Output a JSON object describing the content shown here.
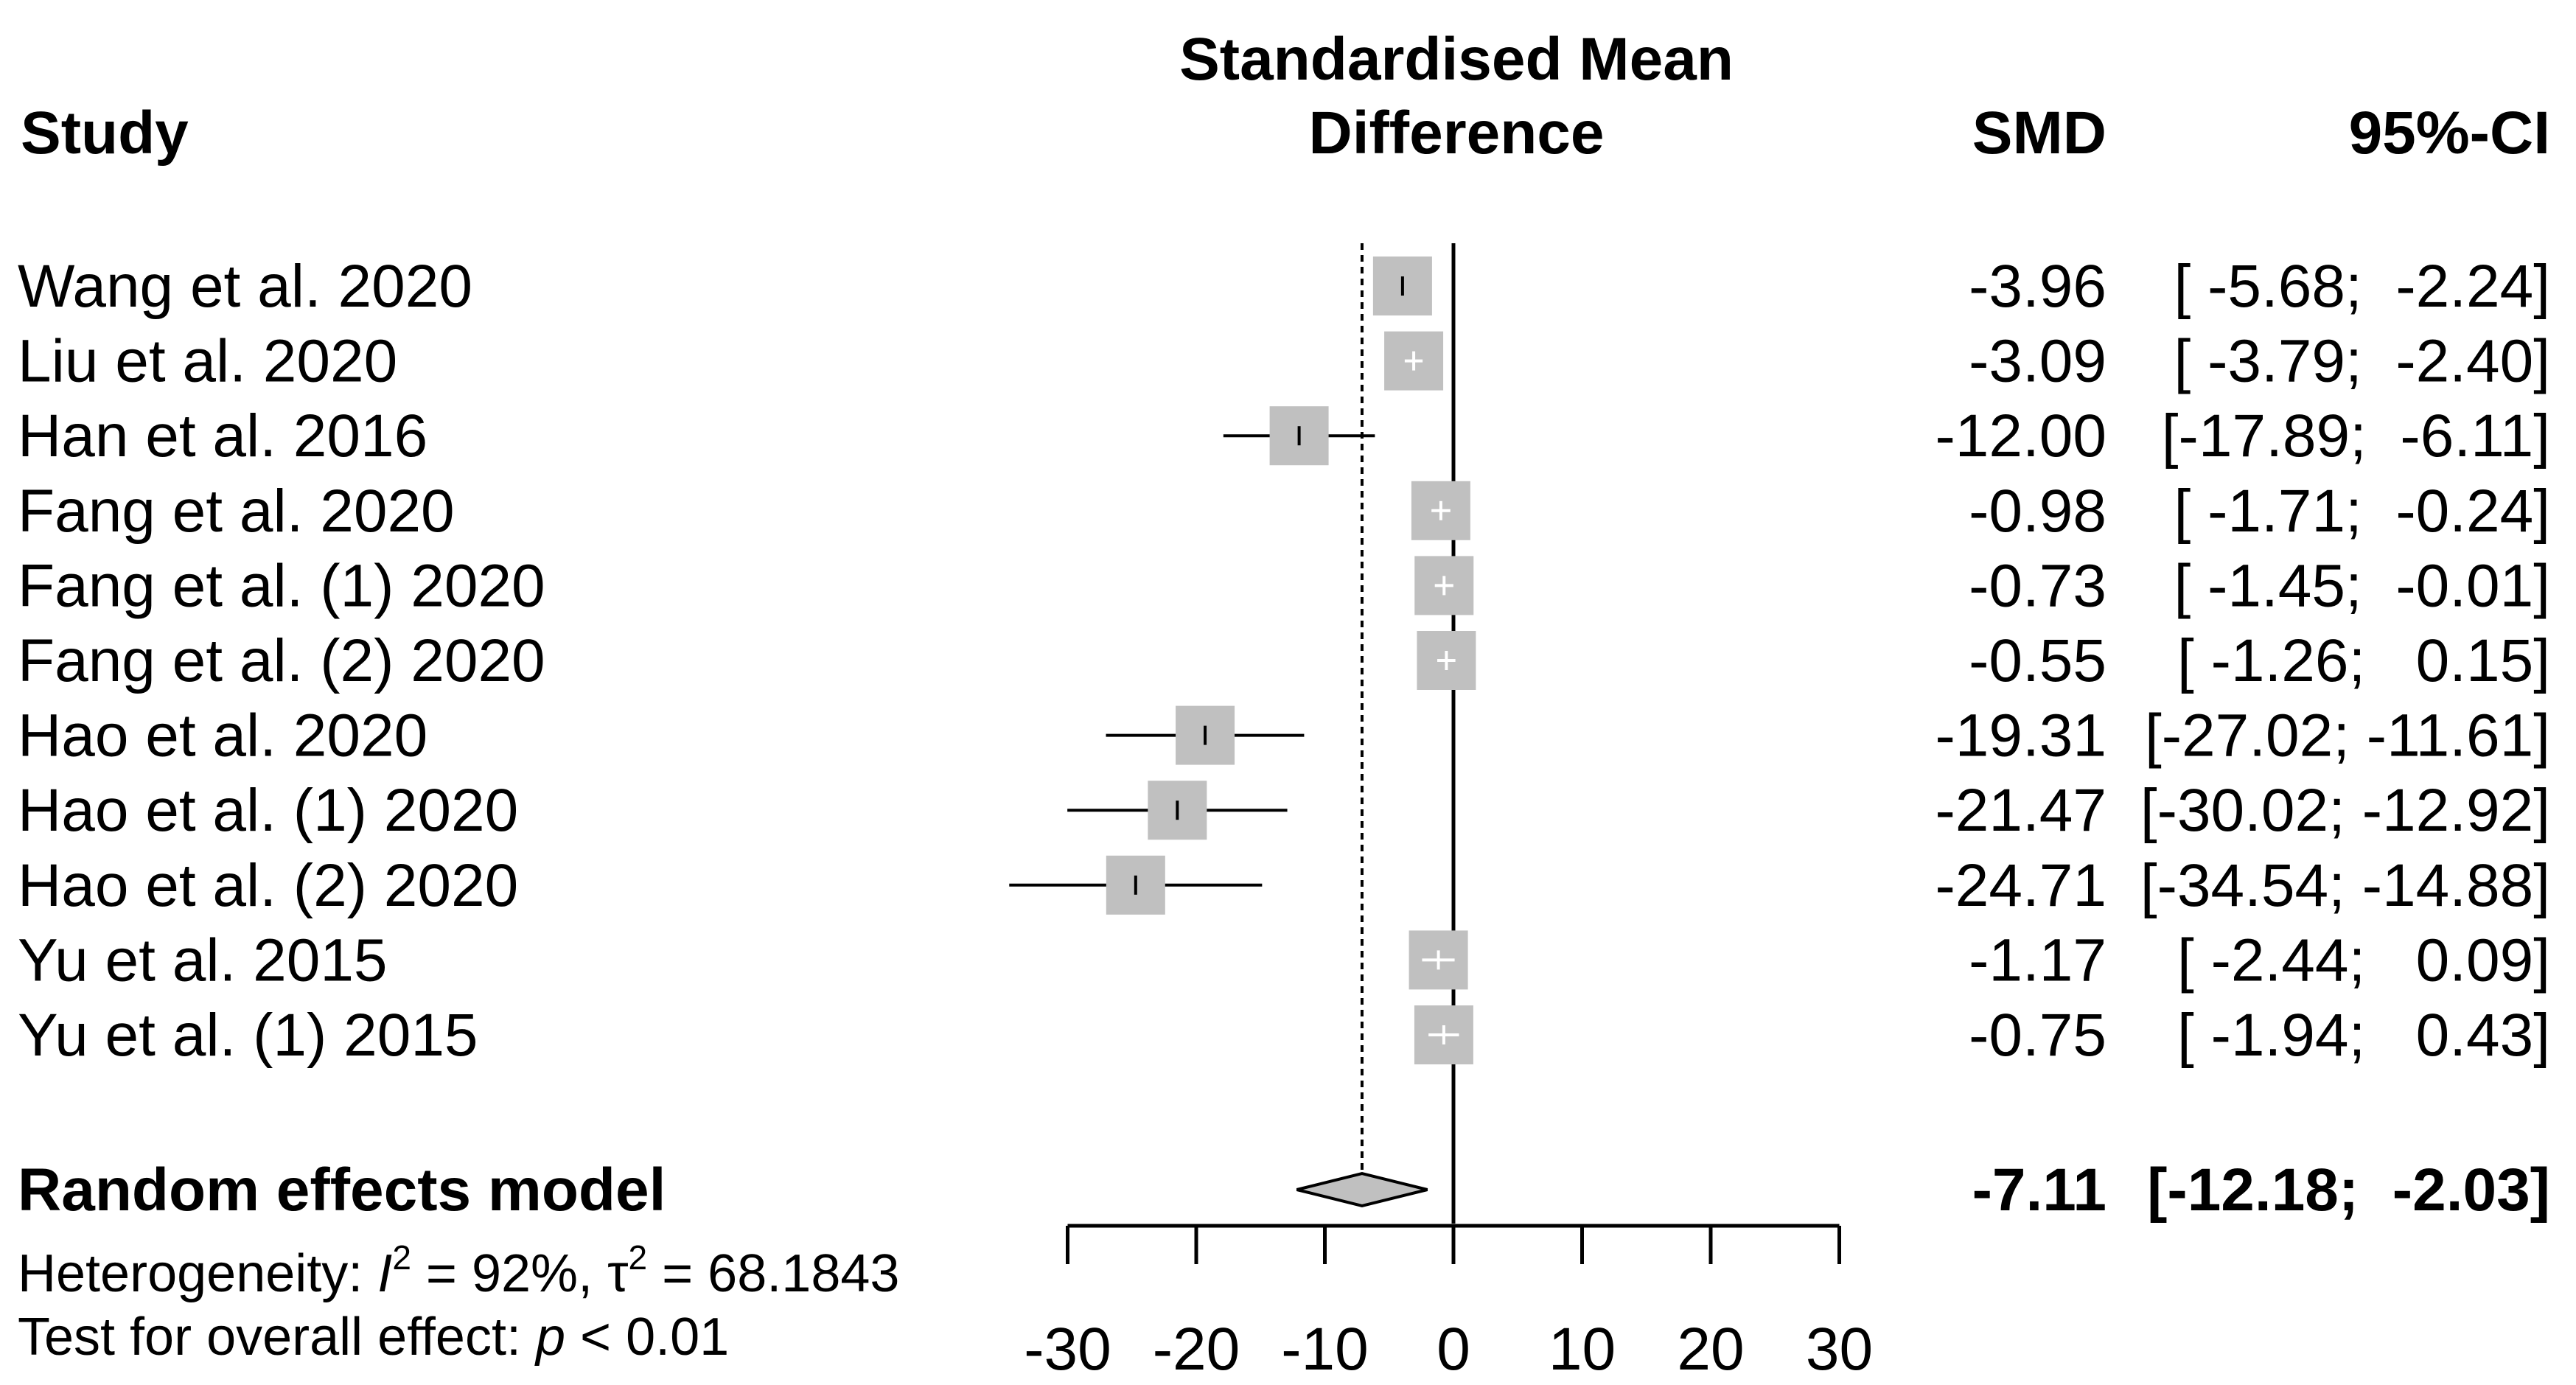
{
  "header": {
    "study": "Study",
    "plot_title_line1": "Standardised Mean",
    "plot_title_line2": "Difference",
    "smd": "SMD",
    "ci": "95%-CI"
  },
  "footer": {
    "heterogeneity_prefix": "Heterogeneity: ",
    "i2_symbol": "I",
    "i2_value": " = 92%, ",
    "tau_symbol": "τ",
    "tau_value": " = 68.1843",
    "superscript": "2",
    "test_prefix": "Test for overall effect:  ",
    "p_symbol": "p",
    "p_value": " < 0.01"
  },
  "chart_data": {
    "type": "forest",
    "title": "Standardised Mean Difference",
    "xlim": [
      -30,
      30
    ],
    "xticks": [
      -30,
      -20,
      -10,
      0,
      10,
      20,
      30
    ],
    "null_line": 0,
    "studies": [
      {
        "name": "Wang et al. 2020",
        "smd": -3.96,
        "lower": -5.68,
        "upper": -2.24,
        "smd_text": "-3.96",
        "ci_text": "[ -5.68;  -2.24]"
      },
      {
        "name": "Liu et al. 2020",
        "smd": -3.09,
        "lower": -3.79,
        "upper": -2.4,
        "smd_text": "-3.09",
        "ci_text": "[ -3.79;  -2.40]"
      },
      {
        "name": "Han et al. 2016",
        "smd": -12.0,
        "lower": -17.89,
        "upper": -6.11,
        "smd_text": "-12.00",
        "ci_text": "[-17.89;  -6.11]"
      },
      {
        "name": "Fang et al. 2020",
        "smd": -0.98,
        "lower": -1.71,
        "upper": -0.24,
        "smd_text": "-0.98",
        "ci_text": "[ -1.71;  -0.24]"
      },
      {
        "name": "Fang et al. (1) 2020",
        "smd": -0.73,
        "lower": -1.45,
        "upper": -0.01,
        "smd_text": "-0.73",
        "ci_text": "[ -1.45;  -0.01]"
      },
      {
        "name": "Fang et al. (2) 2020",
        "smd": -0.55,
        "lower": -1.26,
        "upper": 0.15,
        "smd_text": "-0.55",
        "ci_text": "[ -1.26;   0.15]"
      },
      {
        "name": "Hao et al. 2020",
        "smd": -19.31,
        "lower": -27.02,
        "upper": -11.61,
        "smd_text": "-19.31",
        "ci_text": "[-27.02; -11.61]"
      },
      {
        "name": "Hao et al. (1) 2020",
        "smd": -21.47,
        "lower": -30.02,
        "upper": -12.92,
        "smd_text": "-21.47",
        "ci_text": "[-30.02; -12.92]"
      },
      {
        "name": "Hao et al. (2) 2020",
        "smd": -24.71,
        "lower": -34.54,
        "upper": -14.88,
        "smd_text": "-24.71",
        "ci_text": "[-34.54; -14.88]"
      },
      {
        "name": "Yu et al. 2015",
        "smd": -1.17,
        "lower": -2.44,
        "upper": 0.09,
        "smd_text": "-1.17",
        "ci_text": "[ -2.44;   0.09]"
      },
      {
        "name": "Yu et al. (1) 2015",
        "smd": -0.75,
        "lower": -1.94,
        "upper": 0.43,
        "smd_text": "-0.75",
        "ci_text": "[ -1.94;   0.43]"
      }
    ],
    "summary": {
      "name": "Random effects model",
      "smd": -7.11,
      "lower": -12.18,
      "upper": -2.03,
      "smd_text": "-7.11",
      "ci_text": "[-12.18;  -2.03]"
    },
    "colors": {
      "box": "#c0c0c0",
      "diamond": "#c0c0c0",
      "line": "#000000"
    }
  }
}
